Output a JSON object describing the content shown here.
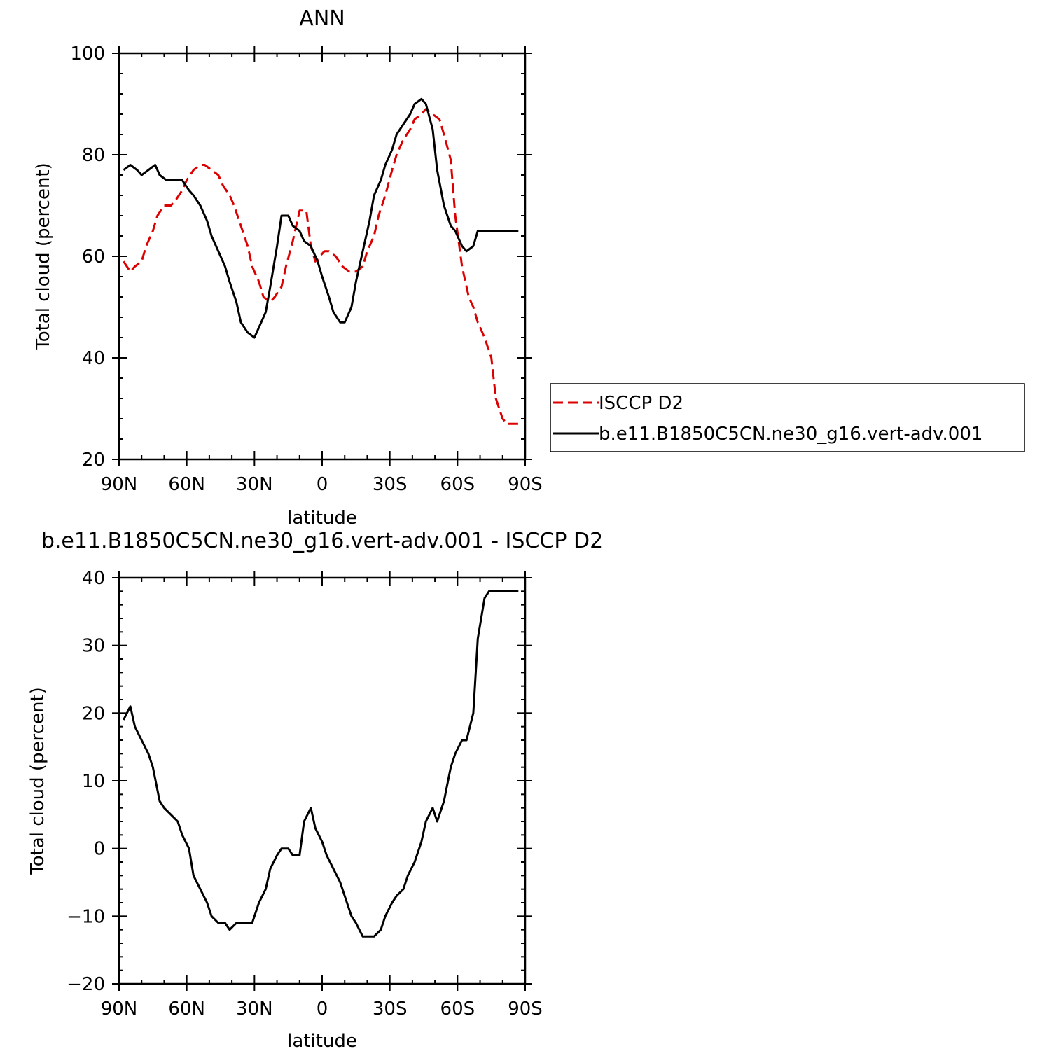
{
  "chart_data": [
    {
      "type": "line",
      "title": "ANN",
      "xlabel": "latitude",
      "ylabel": "Total cloud (percent)",
      "xlim": [
        90,
        -90
      ],
      "ylim": [
        20,
        100
      ],
      "x_ticks": [
        {
          "value": 90,
          "label": "90N"
        },
        {
          "value": 60,
          "label": "60N"
        },
        {
          "value": 30,
          "label": "30N"
        },
        {
          "value": 0,
          "label": "0"
        },
        {
          "value": -30,
          "label": "30S"
        },
        {
          "value": -60,
          "label": "60S"
        },
        {
          "value": -90,
          "label": "90S"
        }
      ],
      "y_ticks": [
        20,
        40,
        60,
        80,
        100
      ],
      "legend_position": "right",
      "series": [
        {
          "name": "ISCCP D2",
          "color": "#dd0000",
          "dash": "dashed",
          "x": [
            88,
            85,
            83,
            80,
            78,
            75,
            73,
            70,
            67,
            65,
            62,
            60,
            57,
            54,
            52,
            49,
            46,
            44,
            41,
            39,
            36,
            33,
            31,
            28,
            26,
            23,
            21,
            18,
            16,
            13,
            10,
            7,
            5,
            3,
            1,
            -1,
            -3,
            -6,
            -9,
            -12,
            -15,
            -18,
            -20,
            -23,
            -25,
            -28,
            -31,
            -33,
            -36,
            -39,
            -41,
            -44,
            -46,
            -49,
            -52,
            -54,
            -57,
            -59,
            -62,
            -65,
            -67,
            -69,
            -72,
            -75,
            -77,
            -80,
            -82,
            -85,
            -87,
            -89
          ],
          "y": [
            59,
            57,
            58,
            59,
            62,
            65,
            68,
            70,
            70,
            71,
            73,
            75,
            77,
            78,
            78,
            77,
            76,
            74,
            72,
            70,
            66,
            62,
            58,
            55,
            52,
            51,
            52,
            54,
            58,
            63,
            69,
            69,
            62,
            59,
            60,
            61,
            61,
            60,
            58,
            57,
            57,
            58,
            61,
            64,
            68,
            72,
            77,
            80,
            83,
            85,
            87,
            88,
            89,
            88,
            87,
            84,
            79,
            68,
            58,
            52,
            50,
            47,
            44,
            40,
            32,
            28,
            27,
            27,
            27,
            27
          ]
        },
        {
          "name": "b.e11.B1850C5CN.ne30_g16.vert-adv.001",
          "color": "#000000",
          "dash": "solid",
          "x": [
            88,
            85,
            82,
            80,
            77,
            74,
            72,
            69,
            67,
            64,
            62,
            59,
            57,
            54,
            51,
            49,
            46,
            43,
            41,
            38,
            36,
            33,
            30,
            28,
            25,
            23,
            20,
            18,
            15,
            13,
            10,
            8,
            5,
            2,
            0,
            -3,
            -5,
            -8,
            -10,
            -13,
            -15,
            -18,
            -21,
            -23,
            -26,
            -28,
            -31,
            -33,
            -36,
            -39,
            -41,
            -44,
            -46,
            -49,
            -51,
            -54,
            -57,
            -59,
            -62,
            -64,
            -67,
            -69,
            -72,
            -74,
            -77,
            -80,
            -82,
            -85,
            -87
          ],
          "y": [
            77,
            78,
            77,
            76,
            77,
            78,
            76,
            75,
            75,
            75,
            75,
            73,
            72,
            70,
            67,
            64,
            61,
            58,
            55,
            51,
            47,
            45,
            44,
            46,
            49,
            54,
            62,
            68,
            68,
            66,
            65,
            63,
            62,
            59,
            56,
            52,
            49,
            47,
            47,
            50,
            55,
            61,
            67,
            72,
            75,
            78,
            81,
            84,
            86,
            88,
            90,
            91,
            90,
            85,
            77,
            70,
            66,
            65,
            62,
            61,
            62,
            65,
            65,
            65,
            65,
            65,
            65,
            65,
            65
          ]
        }
      ]
    },
    {
      "type": "line",
      "title": "b.e11.B1850C5CN.ne30_g16.vert-adv.001 - ISCCP D2",
      "xlabel": "latitude",
      "ylabel": "Total cloud (percent)",
      "xlim": [
        90,
        -90
      ],
      "ylim": [
        -20,
        40
      ],
      "x_ticks": [
        {
          "value": 90,
          "label": "90N"
        },
        {
          "value": 60,
          "label": "60N"
        },
        {
          "value": 30,
          "label": "30N"
        },
        {
          "value": 0,
          "label": "0"
        },
        {
          "value": -30,
          "label": "30S"
        },
        {
          "value": -60,
          "label": "60S"
        },
        {
          "value": -90,
          "label": "90S"
        }
      ],
      "y_ticks": [
        -20,
        -10,
        0,
        10,
        20,
        30,
        40
      ],
      "series": [
        {
          "color": "#000000",
          "dash": "solid",
          "x": [
            88,
            85,
            83,
            80,
            77,
            75,
            72,
            70,
            67,
            64,
            62,
            59,
            57,
            54,
            51,
            49,
            46,
            43,
            41,
            38,
            36,
            33,
            31,
            28,
            25,
            23,
            20,
            18,
            15,
            13,
            10,
            8,
            5,
            3,
            0,
            -2,
            -5,
            -8,
            -10,
            -13,
            -15,
            -18,
            -21,
            -23,
            -26,
            -28,
            -31,
            -33,
            -36,
            -38,
            -41,
            -44,
            -46,
            -49,
            -51,
            -54,
            -57,
            -59,
            -62,
            -64,
            -67,
            -69,
            -72,
            -74,
            -77,
            -79,
            -82,
            -85,
            -87
          ],
          "y": [
            19,
            21,
            18,
            16,
            14,
            12,
            7,
            6,
            5,
            4,
            2,
            0,
            -4,
            -6,
            -8,
            -10,
            -11,
            -11,
            -12,
            -11,
            -11,
            -11,
            -11,
            -8,
            -6,
            -3,
            -1,
            0,
            0,
            -1,
            -1,
            4,
            6,
            3,
            1,
            -1,
            -3,
            -5,
            -7,
            -10,
            -11,
            -13,
            -13,
            -13,
            -12,
            -10,
            -8,
            -7,
            -6,
            -4,
            -2,
            1,
            4,
            6,
            4,
            7,
            12,
            14,
            16,
            16,
            20,
            31,
            37,
            38,
            38,
            38,
            38,
            38,
            38
          ]
        }
      ]
    }
  ]
}
